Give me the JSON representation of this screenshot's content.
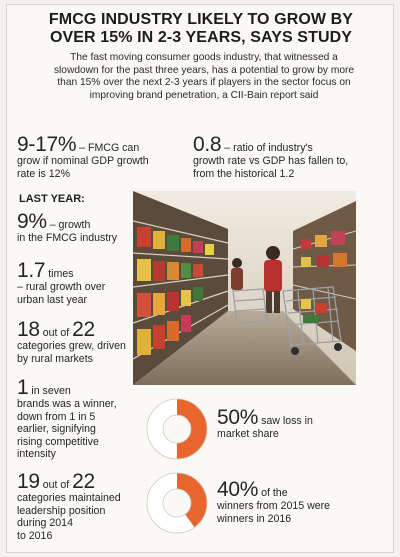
{
  "headline": {
    "line1": "FMCG INDUSTRY LIKELY TO GROW BY",
    "line2": "OVER 15% IN 2-3 YEARS, SAYS STUDY"
  },
  "intro": {
    "line1": "The fast moving consumer goods industry, that witnessed a",
    "line2": "slowdown for the past three years, has a potential to grow by more",
    "line3": "than 15% over the next 2-3 years if players in the sector focus on",
    "line4": "improving brand penetration, a CII-Bain report said"
  },
  "top_stats": [
    {
      "value": "9-17%",
      "text1": " – FMCG can",
      "text2": "grow if nominal GDP growth",
      "text3": "rate is 12%"
    },
    {
      "value": "0.8",
      "text1": " – ratio of industry's",
      "text2": "growth rate vs GDP has fallen to,",
      "text3": "from the historical 1.2"
    }
  ],
  "section_label": "LAST YEAR:",
  "last_year": [
    {
      "value": "9%",
      "text1": " – growth",
      "text2": "in the FMCG industry"
    },
    {
      "value": "1.7",
      "text1": " times",
      "text2": "– rural growth over",
      "text3": "urban last year"
    },
    {
      "value": "18",
      "mid": " out of ",
      "value2": "22",
      "text2": "categories grew, driven",
      "text3": "by rural markets"
    },
    {
      "value": "1",
      "text1": " in seven",
      "text2": "brands was a winner,",
      "text3": "down from 1 in 5",
      "text4": "earlier, signifying",
      "text5": "rising competitive",
      "text6": "intensity"
    },
    {
      "value": "19",
      "mid": " out of ",
      "value2": "22",
      "text2": "categories maintained",
      "text3": "leadership position",
      "text4": "during 2014",
      "text5": "to 2016"
    }
  ],
  "donuts": [
    {
      "percent": 50,
      "label_value": "50%",
      "text1": " saw loss in",
      "text2": "market share"
    },
    {
      "percent": 40,
      "label_value": "40%",
      "text1": " of the",
      "text2": "winners from 2015 were",
      "text3": "winners in 2016"
    }
  ],
  "colors": {
    "accent": "#e8652f",
    "track": "#ffffff",
    "ring_edge": "#cfcac2"
  }
}
